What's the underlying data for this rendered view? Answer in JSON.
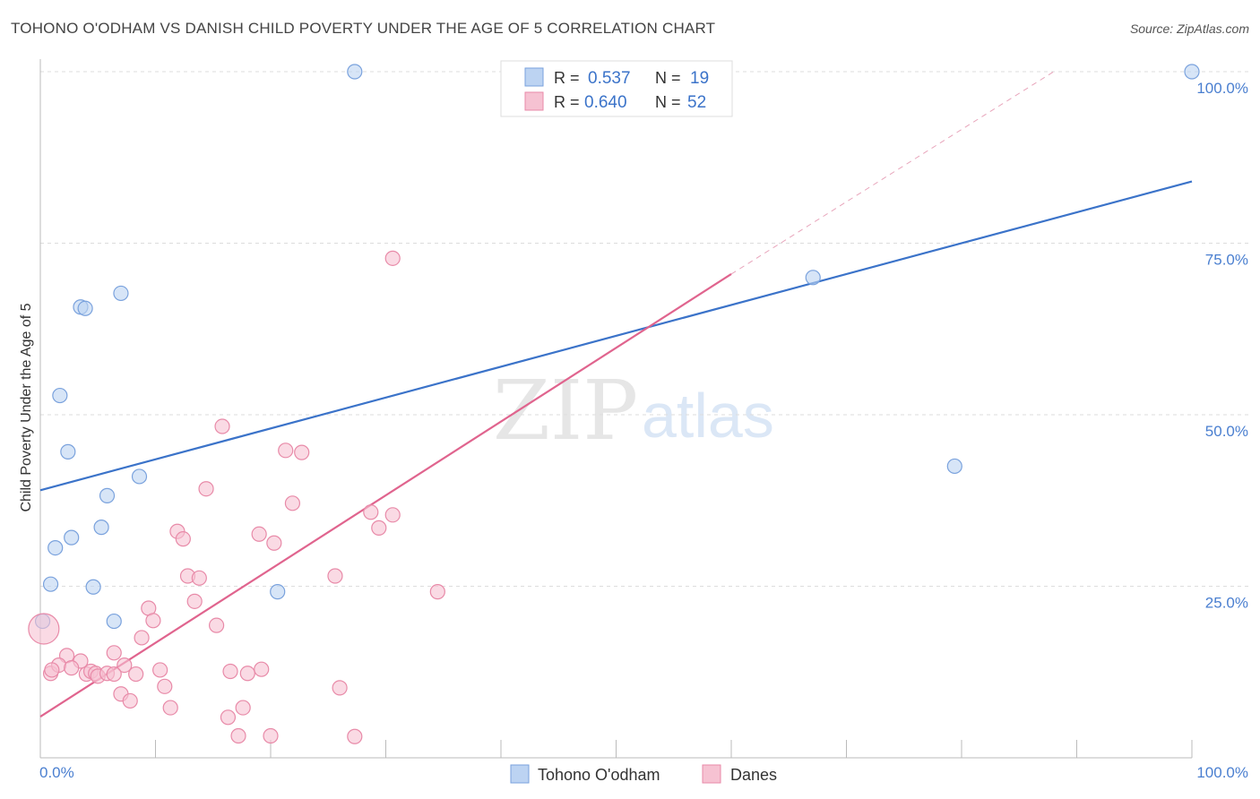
{
  "title": "TOHONO O'ODHAM VS DANISH CHILD POVERTY UNDER THE AGE OF 5 CORRELATION CHART",
  "source": "Source: ZipAtlas.com",
  "watermark": {
    "zip": "ZIP",
    "atlas": "atlas"
  },
  "colors": {
    "blue": "#3b73c9",
    "blue_fill": "#bcd3f2",
    "pink": "#e0648e",
    "pink_fill": "#f6c2d2"
  },
  "chart_data": {
    "type": "scatter",
    "title": "TOHONO O'ODHAM VS DANISH CHILD POVERTY UNDER THE AGE OF 5 CORRELATION CHART",
    "xlabel": "",
    "ylabel": "Child Poverty Under the Age of 5",
    "xlim": [
      0,
      100
    ],
    "ylim": [
      0,
      100
    ],
    "x_tick_labels": [
      "0.0%",
      "100.0%"
    ],
    "y_tick_labels": [
      {
        "value": 100,
        "label": "100.0%"
      },
      {
        "value": 75,
        "label": "75.0%"
      },
      {
        "value": 50,
        "label": "50.0%"
      },
      {
        "value": 25,
        "label": "25.0%"
      }
    ],
    "legend": [
      {
        "r_label": "R =",
        "r": "0.537",
        "n_label": "N =",
        "n": "19"
      },
      {
        "r_label": "R =",
        "r": "0.640",
        "n_label": "N =",
        "n": "52"
      }
    ],
    "series": [
      {
        "name": "Tohono O'odham",
        "color": "blue",
        "points": [
          [
            27.3,
            100
          ],
          [
            100,
            100
          ],
          [
            67.1,
            70
          ],
          [
            7,
            67.7
          ],
          [
            3.5,
            65.7
          ],
          [
            3.9,
            65.5
          ],
          [
            1.7,
            52.8
          ],
          [
            2.4,
            44.6
          ],
          [
            8.6,
            41
          ],
          [
            5.8,
            38.2
          ],
          [
            5.3,
            33.6
          ],
          [
            2.7,
            32.1
          ],
          [
            1.3,
            30.6
          ],
          [
            0.9,
            25.3
          ],
          [
            4.6,
            24.9
          ],
          [
            20.6,
            24.2
          ],
          [
            6.4,
            19.9
          ],
          [
            0.2,
            19.9
          ],
          [
            79.4,
            42.5
          ]
        ],
        "trend": [
          [
            0,
            39
          ],
          [
            100,
            84
          ]
        ]
      },
      {
        "name": "Danes",
        "color": "pink",
        "points": [
          [
            0.3,
            18.8
          ],
          [
            30.6,
            72.8
          ],
          [
            15.8,
            48.3
          ],
          [
            21.3,
            44.8
          ],
          [
            22.7,
            44.5
          ],
          [
            14.4,
            39.2
          ],
          [
            21.9,
            37.1
          ],
          [
            28.7,
            35.8
          ],
          [
            30.6,
            35.4
          ],
          [
            29.4,
            33.5
          ],
          [
            11.9,
            33
          ],
          [
            12.4,
            31.9
          ],
          [
            19,
            32.6
          ],
          [
            20.3,
            31.3
          ],
          [
            12.8,
            26.5
          ],
          [
            13.8,
            26.2
          ],
          [
            25.6,
            26.5
          ],
          [
            34.5,
            24.2
          ],
          [
            9.4,
            21.8
          ],
          [
            13.4,
            22.8
          ],
          [
            9.8,
            20
          ],
          [
            15.3,
            19.3
          ],
          [
            8.8,
            17.5
          ],
          [
            2.3,
            14.9
          ],
          [
            6.4,
            15.3
          ],
          [
            3.5,
            14.1
          ],
          [
            0.9,
            12.3
          ],
          [
            1.6,
            13.5
          ],
          [
            2.7,
            13.1
          ],
          [
            4,
            12.2
          ],
          [
            4.4,
            12.6
          ],
          [
            4.8,
            12.3
          ],
          [
            5,
            11.9
          ],
          [
            5.8,
            12.3
          ],
          [
            7.3,
            13.5
          ],
          [
            8.3,
            12.2
          ],
          [
            10.4,
            12.8
          ],
          [
            16.5,
            12.6
          ],
          [
            18,
            12.3
          ],
          [
            19.2,
            12.9
          ],
          [
            1,
            12.8
          ],
          [
            10.8,
            10.4
          ],
          [
            7,
            9.3
          ],
          [
            7.8,
            8.3
          ],
          [
            11.3,
            7.3
          ],
          [
            17.6,
            7.3
          ],
          [
            16.3,
            5.9
          ],
          [
            17.2,
            3.2
          ],
          [
            20,
            3.2
          ],
          [
            27.3,
            3.1
          ],
          [
            26,
            10.2
          ],
          [
            6.4,
            12.2
          ]
        ],
        "trend": [
          [
            0,
            6
          ],
          [
            60,
            70.5
          ]
        ],
        "trend_extension": [
          [
            60,
            70.5
          ],
          [
            88,
            100
          ]
        ]
      }
    ]
  }
}
